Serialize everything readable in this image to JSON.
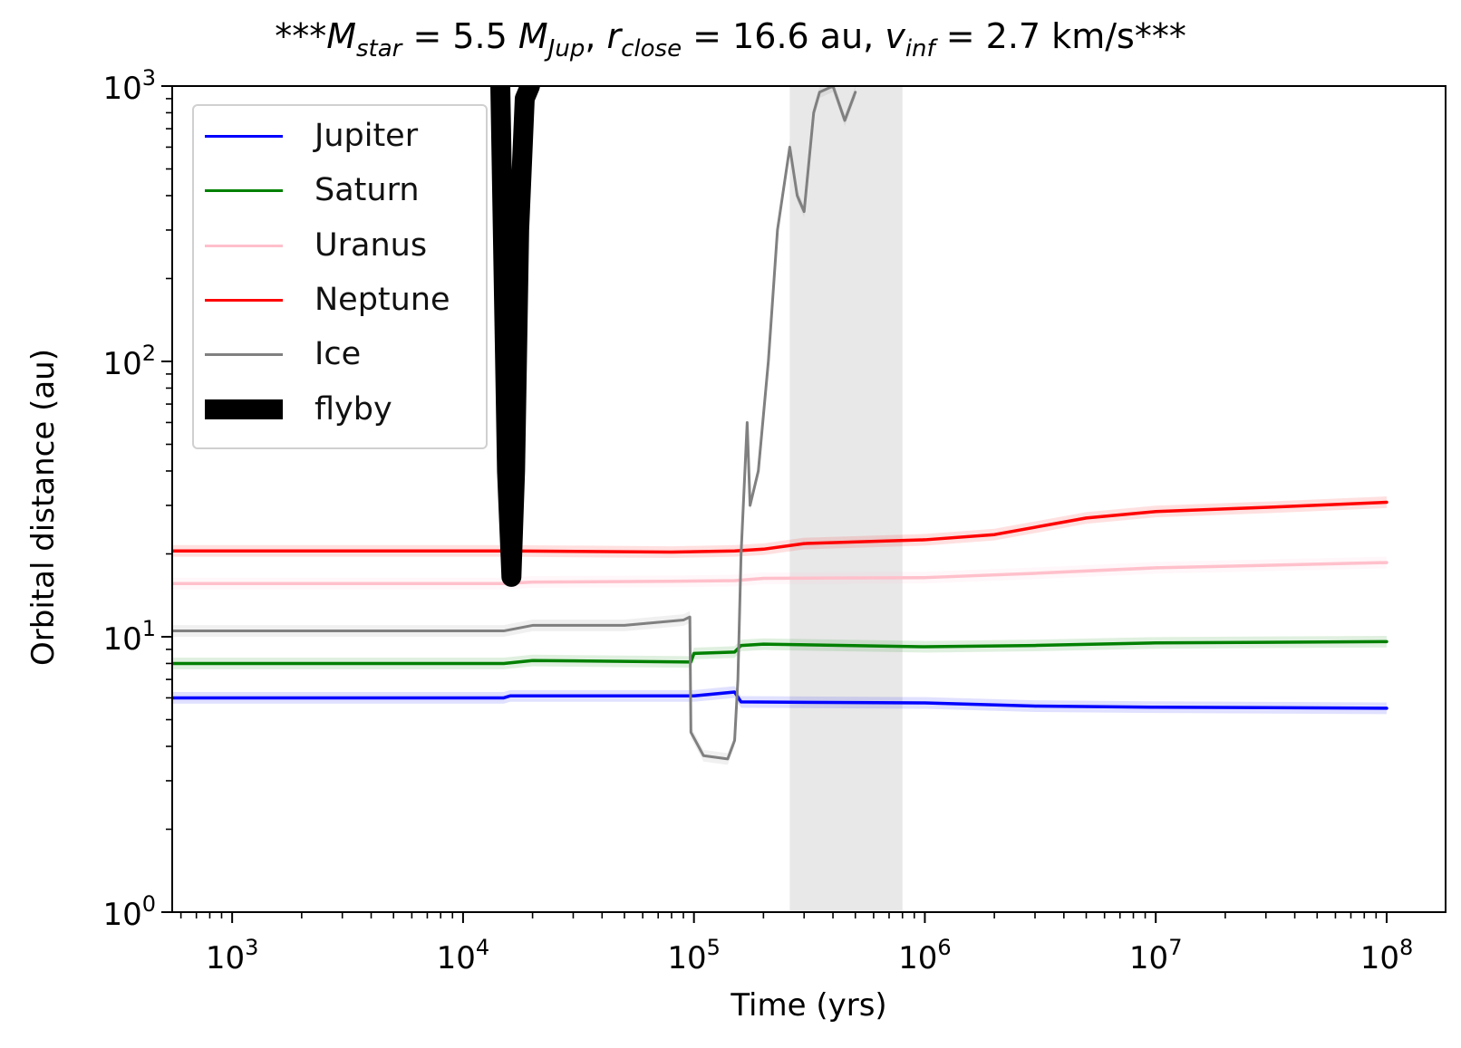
{
  "title": {
    "prefix": "***",
    "m_sym": "M",
    "m_sub": "star",
    "m_val": " = 5.5 ",
    "mj_sym": "M",
    "mj_sub": "Jup",
    "sep1": ", ",
    "r_sym": "r",
    "r_sub": "close",
    "r_val": " = 16.6 au, ",
    "v_sym": "v",
    "v_sub": "inf",
    "v_val": " = 2.7 km/s",
    "suffix": "***"
  },
  "chart_data": {
    "type": "line",
    "xscale": "log",
    "yscale": "log",
    "xlabel": "Time (yrs)",
    "ylabel": "Orbital distance (au)",
    "xlim": [
      550,
      180000000
    ],
    "ylim": [
      1,
      1000
    ],
    "xticks": [
      {
        "base": "10",
        "exp": "3"
      },
      {
        "base": "10",
        "exp": "4"
      },
      {
        "base": "10",
        "exp": "5"
      },
      {
        "base": "10",
        "exp": "6"
      },
      {
        "base": "10",
        "exp": "7"
      },
      {
        "base": "10",
        "exp": "8"
      }
    ],
    "yticks": [
      {
        "base": "10",
        "exp": "0"
      },
      {
        "base": "10",
        "exp": "1"
      },
      {
        "base": "10",
        "exp": "2"
      },
      {
        "base": "10",
        "exp": "3"
      }
    ],
    "legend_position": "top-left",
    "series": [
      {
        "name": "Jupiter",
        "color": "#0000ff",
        "x": [
          550,
          15000,
          16000,
          100000,
          150000,
          160000,
          1000000,
          3000000,
          10000000,
          100000000
        ],
        "y": [
          6.0,
          6.0,
          6.1,
          6.1,
          6.3,
          5.8,
          5.75,
          5.6,
          5.55,
          5.5
        ]
      },
      {
        "name": "Saturn",
        "color": "#008000",
        "x": [
          550,
          15000,
          20000,
          97000,
          100000,
          150000,
          160000,
          200000,
          1000000,
          3000000,
          10000000,
          100000000
        ],
        "y": [
          8.0,
          8.0,
          8.2,
          8.1,
          8.7,
          8.8,
          9.3,
          9.4,
          9.2,
          9.3,
          9.5,
          9.6
        ]
      },
      {
        "name": "Uranus",
        "color": "#ffc0cb",
        "x": [
          550,
          15000,
          20000,
          80000,
          150000,
          200000,
          1000000,
          3000000,
          10000000,
          100000000
        ],
        "y": [
          15.6,
          15.6,
          15.8,
          15.9,
          16.0,
          16.3,
          16.4,
          17.0,
          17.8,
          18.6
        ]
      },
      {
        "name": "Neptune",
        "color": "#ff0000",
        "x": [
          550,
          15000,
          16000,
          80000,
          150000,
          200000,
          300000,
          1000000,
          2000000,
          5000000,
          10000000,
          30000000,
          100000000
        ],
        "y": [
          20.5,
          20.5,
          20.5,
          20.3,
          20.5,
          20.8,
          21.8,
          22.5,
          23.5,
          27.0,
          28.5,
          29.5,
          30.8
        ]
      },
      {
        "name": "Ice",
        "color": "#808080",
        "x": [
          550,
          15000,
          20000,
          50000,
          90000,
          96000,
          97000,
          110000,
          140000,
          150000,
          155000,
          160000,
          170000,
          175000,
          190000,
          210000,
          230000,
          260000,
          280000,
          300000,
          330000,
          350000,
          400000,
          450000,
          500000
        ],
        "y": [
          10.5,
          10.5,
          11.0,
          11.0,
          11.5,
          11.8,
          4.5,
          3.7,
          3.6,
          4.2,
          7.0,
          20.0,
          60.0,
          30.0,
          40.0,
          100.0,
          300.0,
          600.0,
          400.0,
          350.0,
          800.0,
          950.0,
          1000.0,
          750.0,
          950.0
        ]
      },
      {
        "name": "flyby",
        "color": "#000000",
        "x": [
          14500,
          15500,
          16200,
          16800,
          17500,
          18500,
          19500
        ],
        "y": [
          1000,
          40,
          16.5,
          40,
          300,
          900,
          1000
        ]
      }
    ],
    "shaded_region": {
      "x": [
        260000,
        800000
      ],
      "color": "#e8e8e8"
    }
  }
}
